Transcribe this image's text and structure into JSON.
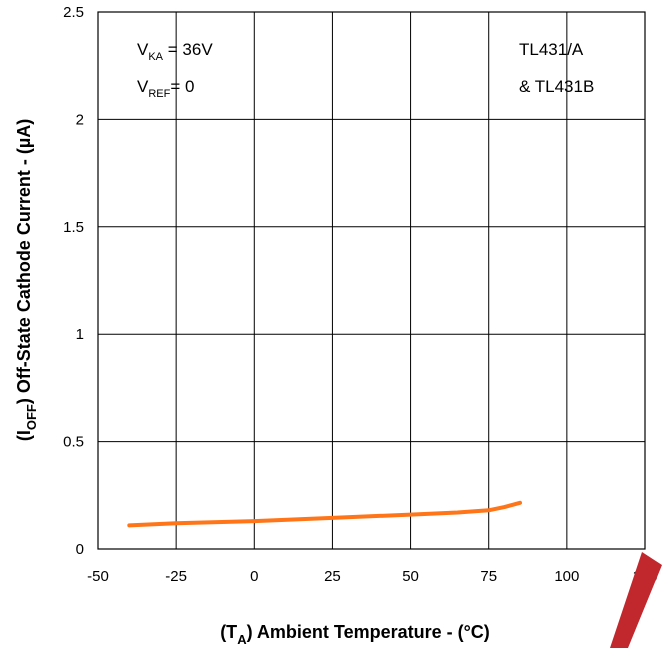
{
  "chart_data": {
    "type": "line",
    "xlabel": {
      "pre": "(T",
      "sub": "A",
      "post": ")  Ambient Temperature - (°C)"
    },
    "ylabel": {
      "pre": "(I",
      "sub": "OFF",
      "post": ") Off-State Cathode Current - (µA)"
    },
    "xlim": [
      -50,
      125
    ],
    "ylim": [
      0,
      2.5
    ],
    "x_ticks": [
      "-50",
      "-25",
      "0",
      "25",
      "50",
      "75",
      "100",
      "125"
    ],
    "y_ticks": [
      "0",
      "0.5",
      "1",
      "1.5",
      "2",
      "2.5"
    ],
    "grid": true,
    "series": [
      {
        "color": "#ff7518",
        "x": [
          -40,
          -25,
          0,
          25,
          50,
          65,
          75,
          80,
          85
        ],
        "y": [
          0.11,
          0.12,
          0.13,
          0.145,
          0.16,
          0.17,
          0.18,
          0.195,
          0.215
        ]
      }
    ],
    "annotations": {
      "vka": {
        "main": "V",
        "sub": "KA",
        "rest": " = 36V"
      },
      "vref": {
        "main": "V",
        "sub": "REF",
        "rest": "= 0"
      },
      "device_line1": "TL431/A",
      "device_line2": "& TL431B"
    }
  },
  "watermark_color": "#c0282e"
}
